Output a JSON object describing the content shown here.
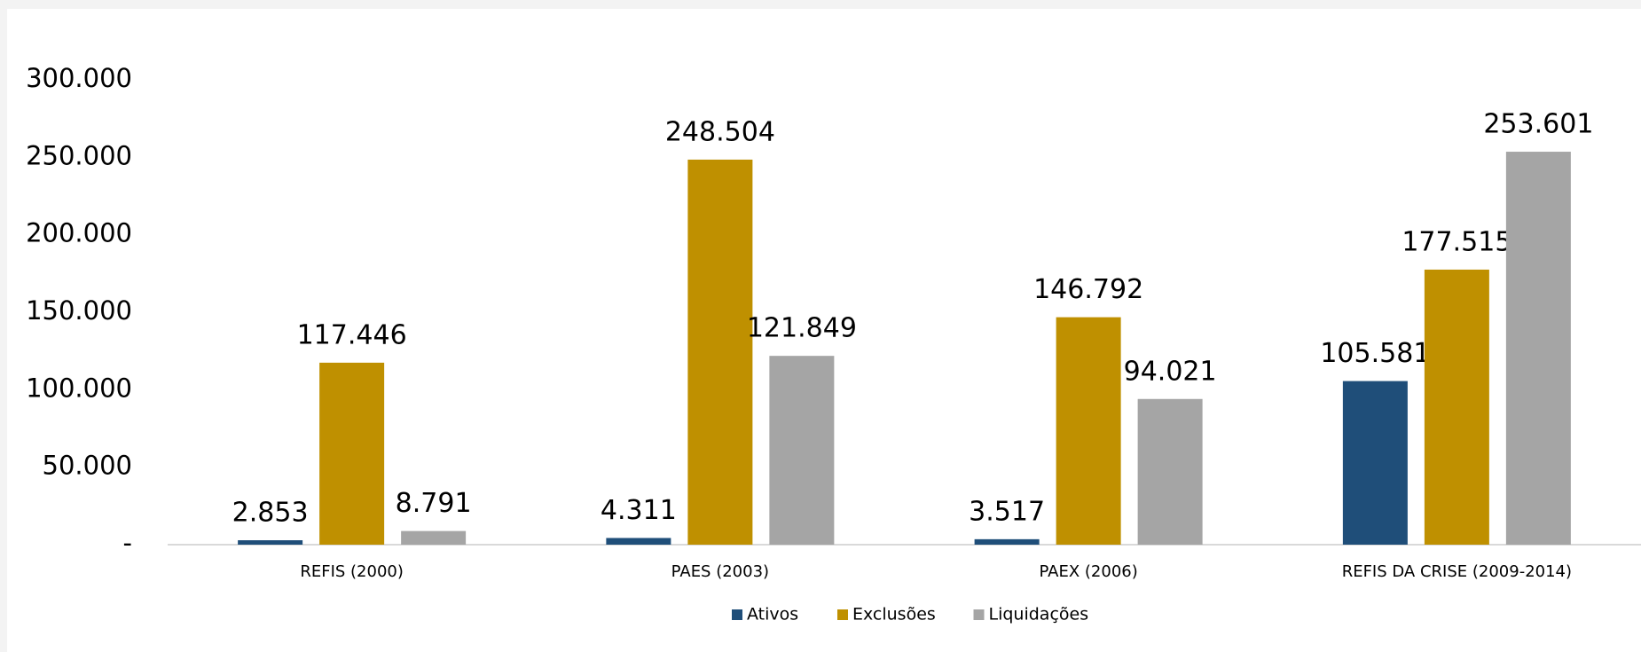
{
  "chart_data": {
    "type": "bar",
    "categories": [
      "REFIS (2000)",
      "PAES (2003)",
      "PAEX (2006)",
      "REFIS DA CRISE (2009-2014)"
    ],
    "series": [
      {
        "name": "Ativos",
        "color": "#1f4e79",
        "values": [
          2853,
          4311,
          3517,
          105581
        ],
        "value_labels": [
          "2.853",
          "4.311",
          "3.517",
          "105.581"
        ]
      },
      {
        "name": "Exclusões",
        "color": "#bf9000",
        "values": [
          117446,
          248504,
          146792,
          177515
        ],
        "value_labels": [
          "117.446",
          "248.504",
          "146.792",
          "177.515"
        ]
      },
      {
        "name": "Liquidações",
        "color": "#a5a5a5",
        "values": [
          8791,
          121849,
          94021,
          253601
        ],
        "value_labels": [
          "8.791",
          "121.849",
          "94.021",
          "253.601"
        ]
      }
    ],
    "ylim": [
      0,
      300000
    ],
    "yticks": [
      {
        "value": 0,
        "label": "-"
      },
      {
        "value": 50000,
        "label": "50.000"
      },
      {
        "value": 100000,
        "label": "100.000"
      },
      {
        "value": 150000,
        "label": "150.000"
      },
      {
        "value": 200000,
        "label": "200.000"
      },
      {
        "value": 250000,
        "label": "250.000"
      },
      {
        "value": 300000,
        "label": "300.000"
      }
    ],
    "grid": false,
    "legend": "bottom"
  }
}
